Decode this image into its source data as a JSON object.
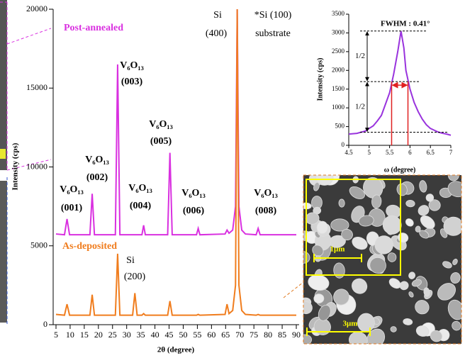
{
  "chart_data": [
    {
      "type": "line",
      "ylabel": "Intensity (cps)",
      "xlabel": "2θ (degree)",
      "xlim": [
        4,
        91
      ],
      "ylim": [
        0,
        20000
      ],
      "xticks": [
        5,
        10,
        15,
        20,
        25,
        30,
        35,
        40,
        45,
        50,
        55,
        60,
        65,
        70,
        75,
        80,
        85,
        90
      ],
      "yticks": [
        0,
        5000,
        10000,
        15000,
        20000
      ],
      "x": [
        5,
        8,
        8.9,
        9.8,
        17,
        17.8,
        18.6,
        26,
        26.8,
        27.6,
        32.1,
        32.9,
        33.7,
        35.4,
        36,
        36.6,
        44.5,
        45.3,
        46.1,
        54.7,
        55.3,
        55.9,
        64.8,
        65.5,
        66.2,
        67.5,
        68.5,
        69.1,
        69.7,
        70.7,
        72,
        75.8,
        76.5,
        77.2,
        90
      ],
      "series": [
        {
          "name": "Post-annealed",
          "color": "#d930e0",
          "values": [
            5750,
            5700,
            6700,
            5700,
            5700,
            8300,
            5700,
            5700,
            16500,
            5700,
            5700,
            5700,
            5700,
            5700,
            6300,
            5700,
            5700,
            10900,
            5700,
            5700,
            6100,
            5700,
            5750,
            6000,
            5800,
            6000,
            7500,
            20000,
            7500,
            6000,
            5750,
            5700,
            6100,
            5700,
            5700
          ]
        },
        {
          "name": "As-deposited",
          "color": "#f07d1e",
          "values": [
            650,
            600,
            1300,
            600,
            600,
            1900,
            600,
            600,
            4500,
            600,
            600,
            2000,
            600,
            600,
            700,
            600,
            600,
            1500,
            600,
            600,
            650,
            600,
            650,
            1300,
            700,
            900,
            2500,
            20000,
            2500,
            900,
            650,
            600,
            650,
            600,
            600
          ]
        }
      ],
      "annotations": [
        "Si",
        "(400)",
        "*Si (100)",
        "substrate",
        "Si",
        "(200)",
        "V₆O₁₃",
        "(001)",
        "V₆O₁₃",
        "(002)",
        "V₆O₁₃",
        "(003)",
        "V₆O₁₃",
        "(004)",
        "V₆O₁₃",
        "(005)",
        "V₆O₁₃",
        "(006)",
        "V₆O₁₃",
        "(008)"
      ]
    },
    {
      "type": "line",
      "title": "FWHM : 0.41°",
      "ylabel": "Intensity (cps)",
      "xlabel": "ω (degree)",
      "xlim": [
        4.5,
        7
      ],
      "ylim": [
        0,
        3500
      ],
      "xticks": [
        4.5,
        5,
        5.5,
        6,
        6.5,
        7
      ],
      "yticks": [
        0,
        500,
        1000,
        1500,
        2000,
        2500,
        3000,
        3500
      ],
      "x": [
        4.5,
        4.7,
        4.9,
        5.0,
        5.1,
        5.2,
        5.3,
        5.4,
        5.5,
        5.6,
        5.7,
        5.78,
        5.85,
        5.9,
        6.0,
        6.1,
        6.2,
        6.3,
        6.4,
        6.5,
        6.6,
        6.7,
        6.8,
        6.9,
        7.0
      ],
      "series": [
        {
          "color": "#9933dd",
          "values": [
            300,
            320,
            380,
            450,
            520,
            650,
            800,
            1100,
            1400,
            1900,
            2500,
            3050,
            2600,
            2000,
            1500,
            1150,
            900,
            700,
            550,
            450,
            400,
            350,
            320,
            300,
            270
          ]
        }
      ],
      "hlines": [
        3050,
        1700,
        350
      ],
      "fwhm_x": [
        5.55,
        5.95
      ],
      "annotations": [
        "1/2",
        "1/2"
      ]
    }
  ],
  "sem": {
    "inset_scale": "1μm",
    "scale": "3μm"
  }
}
